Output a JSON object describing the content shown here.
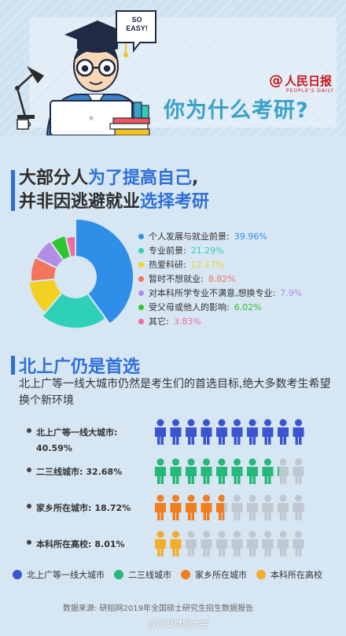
{
  "header": {
    "brand": "人民日报",
    "brand_sub": "PEOPLE'S DAILY",
    "bubble_text": "SO\nEASY!",
    "title": "你为什么考研?"
  },
  "section1": {
    "line1_pre": "大部分人",
    "line1_hl": "为了提高自己",
    "line1_post": ",",
    "line2_pre": "并非因逃避就业",
    "line2_hl": "选择考研"
  },
  "section2": {
    "title": "北上广仍是首选",
    "desc": "北上广等一线大城市仍然是考生们的首选目标,绝大多数考生希望换个新环境"
  },
  "chart_data": [
    {
      "type": "pie",
      "categories": [
        "个人发展与就业前景",
        "专业前景",
        "热爱科研",
        "暂时不想就业",
        "对本科所学专业不满意,想换专业",
        "受父母或他人的影响",
        "其它"
      ],
      "values": [
        39.96,
        21.29,
        12.17,
        8.82,
        7.9,
        6.02,
        3.83
      ],
      "labels": [
        "39.96%",
        "21.29%",
        "12.17%",
        "8.82%",
        "7.9%",
        "6.02%",
        "3.83%"
      ],
      "colors": [
        "#2f8fe8",
        "#2ed0b8",
        "#f4d023",
        "#f2745b",
        "#b38de3",
        "#2ec52e",
        "#f26aa5"
      ],
      "legend": "right"
    },
    {
      "type": "bar",
      "categories": [
        "北上广等一线大城市",
        "二三线城市",
        "家乡所在城市",
        "本科所在高校"
      ],
      "values": [
        40.59,
        32.68,
        18.72,
        8.01
      ],
      "labels": [
        "40.59%",
        "32.68%",
        "18.72%",
        "8.01%"
      ],
      "row_labels": [
        "北上广等一线大城市:",
        "二三线城市:",
        "家乡所在城市:",
        "本科所在高校:"
      ],
      "colors": [
        "#3b55d0",
        "#25b878",
        "#f07e1f",
        "#f3ad2b"
      ],
      "inactive_color": "#bfc7cf",
      "icons_per_row": 10,
      "ylim": [
        0,
        50
      ]
    }
  ],
  "source": "数据来源: 研招网2019年全国硕士研究生招生数据报告",
  "watermark": "@西安财经大学"
}
